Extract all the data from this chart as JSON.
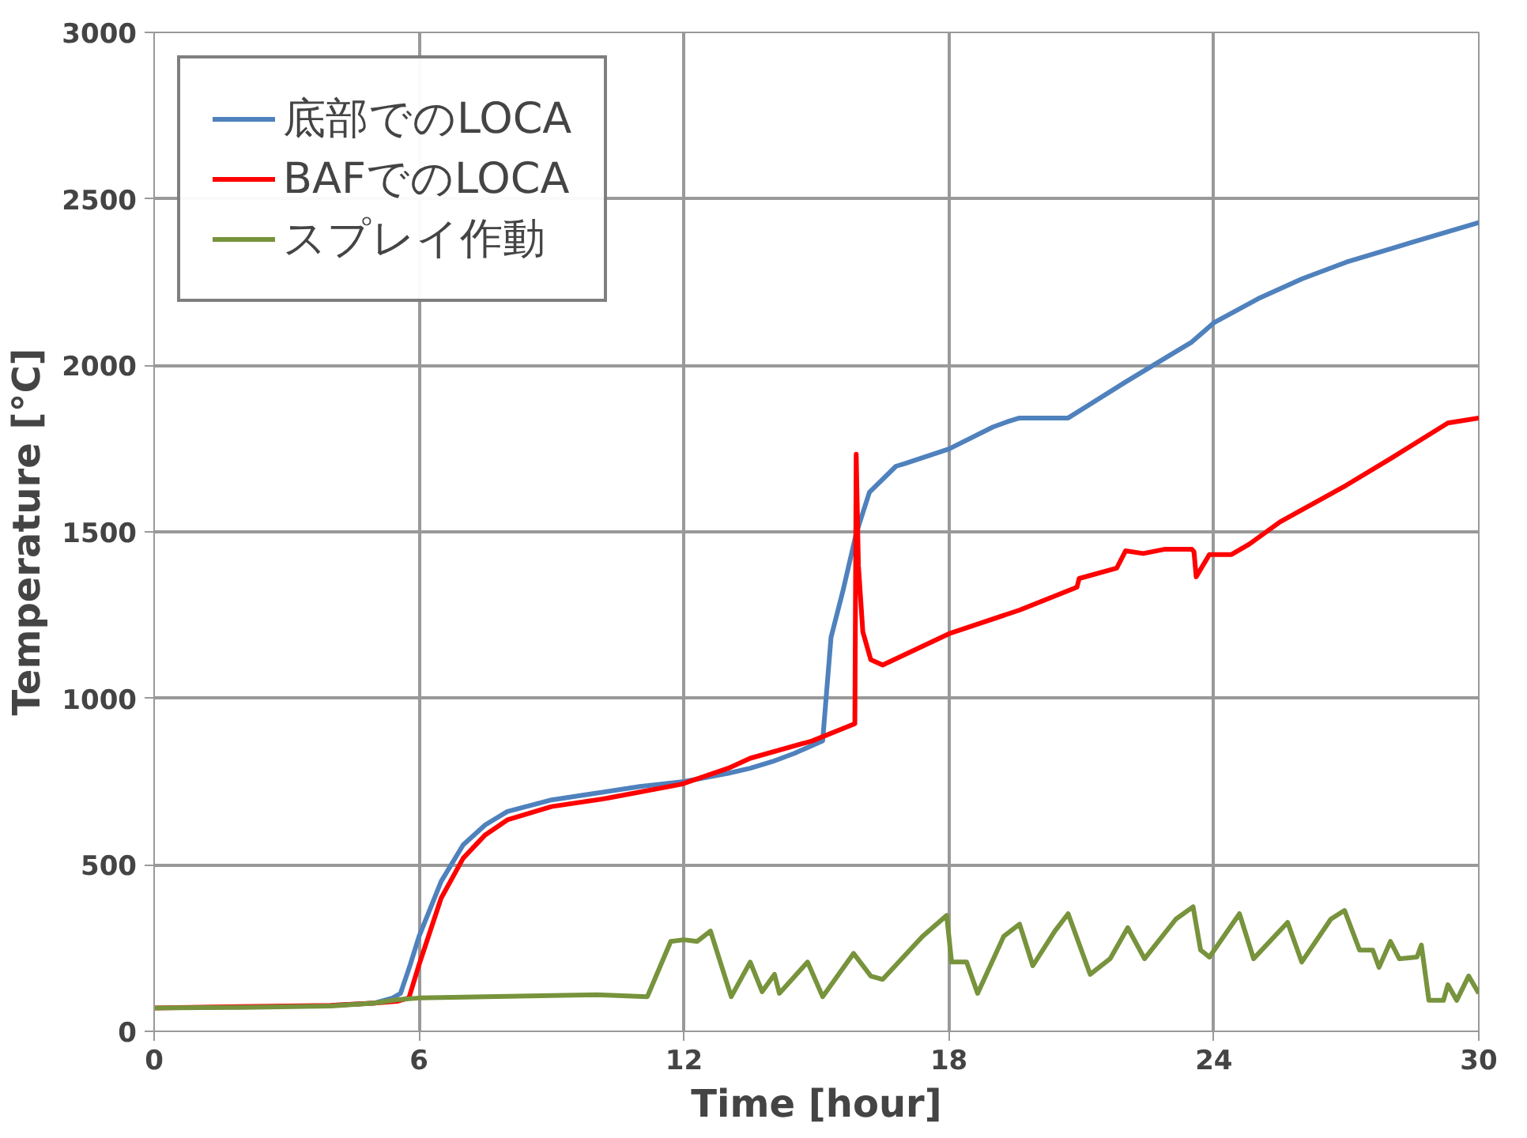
{
  "chart_data": {
    "type": "line",
    "xlabel": "Time [hour]",
    "ylabel": "Temperature [°C]",
    "xlim": [
      0,
      30
    ],
    "ylim": [
      0,
      3000
    ],
    "xticks": [
      0,
      6,
      12,
      18,
      24,
      30
    ],
    "yticks": [
      0,
      500,
      1000,
      1500,
      2000,
      2500,
      3000
    ],
    "grid": true,
    "legend": "top left",
    "marker": "none",
    "line_style": "solid",
    "series": [
      {
        "name": "底部でのLOCA",
        "color": "#4f81bd",
        "x": [
          4,
          5,
          5.4,
          5.58,
          5.8,
          6,
          6.5,
          7,
          7.5,
          8,
          9,
          10,
          11,
          12,
          13,
          13.5,
          14,
          14.5,
          15.14,
          15.33,
          15.6,
          15.9,
          16.2,
          16.8,
          17,
          18,
          19,
          19.35,
          19.6,
          20.7,
          22,
          23,
          23.5,
          24,
          25,
          26,
          27,
          28,
          29,
          30
        ],
        "values": [
          78,
          85,
          100,
          114,
          200,
          285,
          450,
          560,
          620,
          660,
          695,
          715,
          735,
          750,
          775,
          790,
          810,
          835,
          872,
          1183,
          1323,
          1495,
          1619,
          1697,
          1705,
          1749,
          1815,
          1832,
          1842,
          1842,
          1950,
          2030,
          2070,
          2128,
          2200,
          2260,
          2310,
          2350,
          2390,
          2429
        ]
      },
      {
        "name": "BAFでのLOCA",
        "color": "#ff0000",
        "x": [
          0,
          2,
          4,
          5,
          5.5,
          5.77,
          6,
          6.5,
          7,
          7.5,
          8,
          9,
          10.26,
          11.94,
          13,
          13.5,
          14.9,
          15.87,
          15.9,
          15.95,
          16.05,
          16.23,
          16.5,
          18,
          19.6,
          20.9,
          20.95,
          21.8,
          22,
          22.4,
          22.9,
          23.5,
          23.55,
          23.6,
          23.9,
          24.4,
          24.8,
          25.5,
          27,
          28,
          29.3,
          30
        ],
        "values": [
          70,
          74,
          78,
          85,
          90,
          100,
          200,
          400,
          520,
          590,
          635,
          675,
          700,
          742,
          790,
          820,
          872,
          924,
          1733,
          1400,
          1200,
          1116,
          1100,
          1194,
          1265,
          1334,
          1360,
          1391,
          1443,
          1435,
          1448,
          1448,
          1440,
          1365,
          1432,
          1432,
          1463,
          1530,
          1640,
          1720,
          1827,
          1842
        ]
      },
      {
        "name": "スプレイ作動",
        "color": "#77933c",
        "x": [
          0,
          2,
          4,
          5,
          5.5,
          6,
          8,
          10,
          11.17,
          11.7,
          12,
          12.3,
          12.6,
          13.07,
          13.5,
          13.77,
          14.05,
          14.16,
          14.8,
          15.14,
          15.84,
          16.23,
          16.5,
          17.4,
          17.95,
          18.06,
          18.4,
          18.65,
          19.24,
          19.6,
          19.9,
          20.4,
          20.7,
          21.2,
          21.65,
          22.05,
          22.43,
          23.14,
          23.53,
          23.7,
          23.9,
          24.58,
          24.9,
          25.67,
          25.99,
          26.65,
          26.96,
          27.3,
          27.6,
          27.74,
          28,
          28.2,
          28.6,
          28.7,
          28.87,
          29.2,
          29.3,
          29.5,
          29.77,
          30
        ],
        "values": [
          70,
          72,
          76,
          85,
          95,
          100,
          105,
          110,
          104,
          270,
          275,
          270,
          301,
          104,
          208,
          119,
          171,
          114,
          208,
          104,
          234,
          166,
          156,
          285,
          348,
          208,
          208,
          114,
          285,
          322,
          197,
          301,
          353,
          171,
          218,
          311,
          218,
          337,
          374,
          244,
          223,
          353,
          218,
          327,
          208,
          337,
          363,
          244,
          244,
          192,
          270,
          218,
          223,
          259,
          93,
          93,
          140,
          93,
          166,
          114
        ]
      }
    ]
  }
}
